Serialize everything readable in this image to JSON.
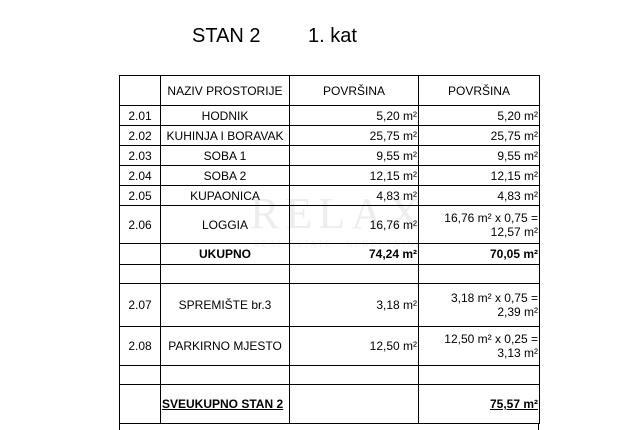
{
  "title": "STAN 2",
  "floor": "1. kat",
  "watermark": {
    "main": "RELAX",
    "sub": "REAL ESTATE - NEKRETNINE"
  },
  "headers": [
    "",
    "NAZIV PROSTORIJE",
    "POVRŠINA",
    "POVRŠINA"
  ],
  "rows": [
    {
      "no": "2.01",
      "name": "HODNIK",
      "area": "5,20 m²",
      "net": "5,20 m²"
    },
    {
      "no": "2.02",
      "name": "KUHINJA I BORAVAK",
      "area": "25,75 m²",
      "net": "25,75 m²"
    },
    {
      "no": "2.03",
      "name": "SOBA 1",
      "area": "9,55  m²",
      "net": "9,55  m²"
    },
    {
      "no": "2.04",
      "name": "SOBA 2",
      "area": "12,15  m²",
      "net": "12,15  m²"
    },
    {
      "no": "2.05",
      "name": "KUPAONICA",
      "area": "4,83  m²",
      "net": "4,83  m²"
    },
    {
      "no": "2.06",
      "name": "LOGGIA",
      "area": "16,76 m²",
      "net": "16,76  m² x 0,75 =",
      "net2": "12,57  m²"
    }
  ],
  "subtotal": {
    "label": "UKUPNO",
    "area": "74,24 m²",
    "net": "70,05 m²"
  },
  "extra_rows": [
    {
      "no": "2.07",
      "name": "SPREMIŠTE br.3",
      "area": "3,18 m²",
      "net": "3,18  m² x 0,75 =",
      "net2": "2,39  m²"
    },
    {
      "no": "2.08",
      "name": "PARKIRNO MJESTO",
      "area": "12,50 m²",
      "net": "12,50  m² x 0,25 =",
      "net2": "3,13 m²"
    }
  ],
  "total": {
    "label": "SVEUKUPNO STAN 2",
    "net": "75,57 m²"
  }
}
